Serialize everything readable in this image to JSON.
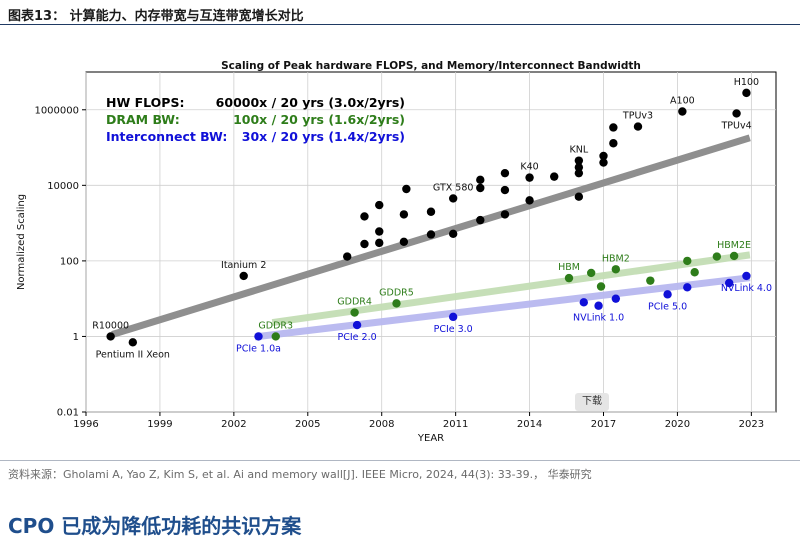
{
  "figure_title": "图表13： 计算能力、内存带宽与互连带宽增长对比",
  "source_text": "资料来源：Gholami A, Yao Z, Kim S, et al. Ai and memory wall[J]. IEEE Micro, 2024, 44(3): 33-39.， 华泰研究",
  "section_heading": "CPO 已成为降低功耗的共识方案",
  "download_label": "下载",
  "chart_data": {
    "type": "scatter",
    "title": "Scaling of Peak hardware FLOPS, and Memory/Interconnect Bandwidth",
    "xlabel": "YEAR",
    "ylabel": "Normalized Scaling",
    "yscale": "log",
    "xlim": [
      1996,
      2024
    ],
    "ylim": [
      0.01,
      10000000
    ],
    "grid": true,
    "xticks": [
      1996,
      1999,
      2002,
      2005,
      2008,
      2011,
      2014,
      2017,
      2020,
      2023
    ],
    "yticks": [
      {
        "value": 0.01,
        "label": "0.01"
      },
      {
        "value": 1,
        "label": "1"
      },
      {
        "value": 100,
        "label": "100"
      },
      {
        "value": 10000,
        "label": "10000"
      },
      {
        "value": 1000000,
        "label": "1000000"
      }
    ],
    "legend": [
      {
        "name": "HW FLOPS:",
        "value": "60000x / 20 yrs (3.0x/2yrs)",
        "color": "#000000"
      },
      {
        "name": "DRAM BW:",
        "value": "100x / 20 yrs (1.6x/2yrs)",
        "color": "#2e7d1a"
      },
      {
        "name": "Interconnect BW:",
        "value": "30x / 20 yrs (1.4x/2yrs)",
        "color": "#1010d8"
      }
    ],
    "series": [
      {
        "name": "HW FLOPS",
        "color": "#000000",
        "trend_color": "#8f8f8f",
        "trend": [
          [
            1997.2,
            1.2
          ],
          [
            2022.8,
            170000
          ]
        ],
        "points": [
          [
            1997.0,
            1.0
          ],
          [
            1997.9,
            0.7
          ],
          [
            2002.4,
            40
          ],
          [
            2006.6,
            130
          ],
          [
            2007.3,
            1500
          ],
          [
            2007.3,
            280
          ],
          [
            2007.9,
            3000
          ],
          [
            2007.9,
            600
          ],
          [
            2007.9,
            300
          ],
          [
            2008.9,
            1700
          ],
          [
            2008.9,
            320
          ],
          [
            2009.0,
            8000
          ],
          [
            2010.0,
            2000
          ],
          [
            2010.0,
            500
          ],
          [
            2010.9,
            4500
          ],
          [
            2010.9,
            520
          ],
          [
            2012.0,
            14000
          ],
          [
            2012.0,
            8500
          ],
          [
            2012.0,
            1200
          ],
          [
            2013.0,
            21000
          ],
          [
            2013.0,
            7500
          ],
          [
            2013.0,
            1700
          ],
          [
            2014.0,
            16000
          ],
          [
            2014.0,
            4000
          ],
          [
            2015.0,
            17000
          ],
          [
            2016.0,
            45000
          ],
          [
            2016.0,
            30000
          ],
          [
            2016.0,
            21000
          ],
          [
            2016.0,
            5000
          ],
          [
            2017.0,
            60000
          ],
          [
            2017.0,
            40000
          ],
          [
            2017.4,
            130000
          ],
          [
            2017.4,
            340000
          ],
          [
            2018.4,
            360000
          ],
          [
            2020.2,
            900000
          ],
          [
            2022.4,
            800000
          ],
          [
            2022.8,
            2800000
          ]
        ],
        "labels": [
          {
            "text": "R10000",
            "x": 1997.0,
            "y": 1.0,
            "pos": "above"
          },
          {
            "text": "Pentium II Xeon",
            "x": 1997.9,
            "y": 0.7,
            "pos": "below"
          },
          {
            "text": "Itanium 2",
            "x": 2002.4,
            "y": 40,
            "pos": "above"
          },
          {
            "text": "GTX 580",
            "x": 2010.9,
            "y": 4500,
            "pos": "above"
          },
          {
            "text": "K40",
            "x": 2014.0,
            "y": 16000,
            "pos": "above"
          },
          {
            "text": "KNL",
            "x": 2016.0,
            "y": 45000,
            "pos": "above"
          },
          {
            "text": "TPUv3",
            "x": 2018.4,
            "y": 360000,
            "pos": "above"
          },
          {
            "text": "A100",
            "x": 2020.2,
            "y": 900000,
            "pos": "above"
          },
          {
            "text": "H100",
            "x": 2022.8,
            "y": 2800000,
            "pos": "above"
          },
          {
            "text": "TPUv4",
            "x": 2022.4,
            "y": 800000,
            "pos": "below"
          }
        ]
      },
      {
        "name": "DRAM BW",
        "color": "#2e7d1a",
        "trend_color": "#c4deb5",
        "trend": [
          [
            2003.7,
            2.4
          ],
          [
            2022.8,
            140
          ]
        ],
        "points": [
          [
            2003.7,
            1.0
          ],
          [
            2006.9,
            4.3
          ],
          [
            2008.6,
            7.5
          ],
          [
            2015.6,
            35
          ],
          [
            2016.5,
            48
          ],
          [
            2016.9,
            21
          ],
          [
            2017.5,
            60
          ],
          [
            2018.9,
            30
          ],
          [
            2020.4,
            100
          ],
          [
            2020.7,
            50
          ],
          [
            2021.6,
            130
          ],
          [
            2022.3,
            135
          ]
        ],
        "labels": [
          {
            "text": "GDDR3",
            "x": 2003.7,
            "y": 1.0,
            "pos": "above"
          },
          {
            "text": "GDDR4",
            "x": 2006.9,
            "y": 4.3,
            "pos": "above"
          },
          {
            "text": "GDDR5",
            "x": 2008.6,
            "y": 7.5,
            "pos": "above"
          },
          {
            "text": "HBM",
            "x": 2015.6,
            "y": 35,
            "pos": "above"
          },
          {
            "text": "HBM2",
            "x": 2017.5,
            "y": 60,
            "pos": "above"
          },
          {
            "text": "HBM2E",
            "x": 2022.3,
            "y": 135,
            "pos": "above"
          }
        ]
      },
      {
        "name": "Interconnect BW",
        "color": "#1010d8",
        "trend_color": "#b8b8f0",
        "trend": [
          [
            2003.0,
            1.0
          ],
          [
            2022.8,
            35
          ]
        ],
        "points": [
          [
            2003.0,
            1.0
          ],
          [
            2007.0,
            2.0
          ],
          [
            2010.9,
            3.3
          ],
          [
            2016.2,
            8
          ],
          [
            2016.8,
            6.5
          ],
          [
            2017.5,
            10
          ],
          [
            2019.6,
            13
          ],
          [
            2020.4,
            20
          ],
          [
            2022.1,
            26
          ],
          [
            2022.8,
            40
          ]
        ],
        "labels": [
          {
            "text": "PCIe 1.0a",
            "x": 2003.0,
            "y": 1.0,
            "pos": "below"
          },
          {
            "text": "PCIe 2.0",
            "x": 2007.0,
            "y": 2.0,
            "pos": "below"
          },
          {
            "text": "PCIe 3.0",
            "x": 2010.9,
            "y": 3.3,
            "pos": "below"
          },
          {
            "text": "NVLink 1.0",
            "x": 2016.8,
            "y": 6.5,
            "pos": "below"
          },
          {
            "text": "PCIe 5.0",
            "x": 2019.6,
            "y": 13,
            "pos": "below"
          },
          {
            "text": "NVLink 4.0",
            "x": 2022.8,
            "y": 40,
            "pos": "below"
          }
        ]
      }
    ]
  }
}
